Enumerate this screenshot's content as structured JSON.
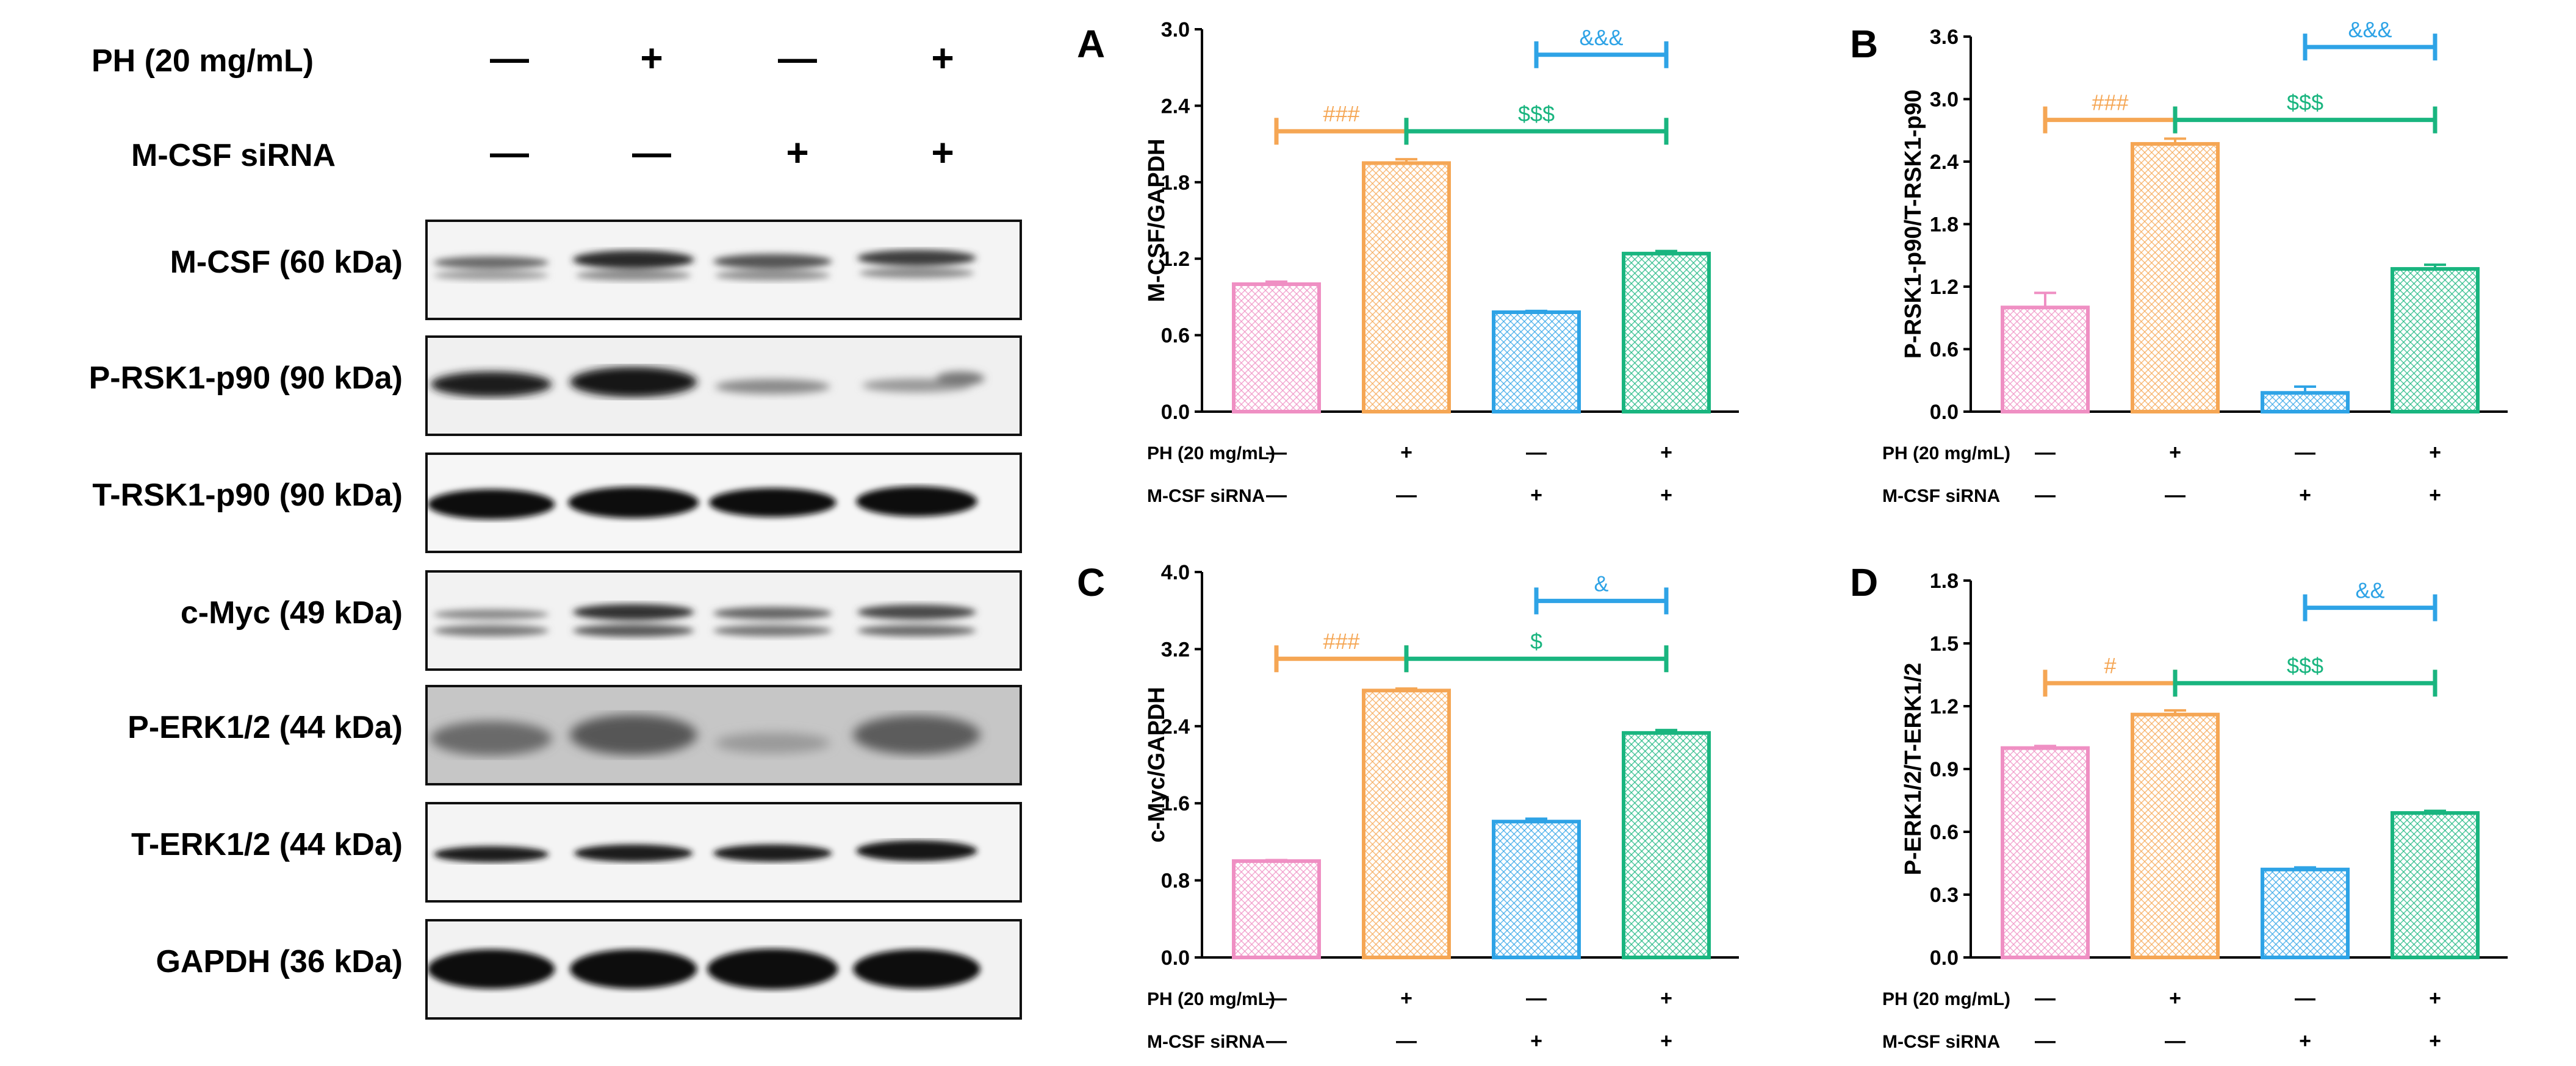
{
  "colors": {
    "pink": "#ef8fc3",
    "orange": "#f5a654",
    "blue": "#2ea3e6",
    "green": "#19b57f",
    "axis": "#000000"
  },
  "blot": {
    "treatment_rows": [
      {
        "label": "PH (20 mg/mL)",
        "signs": [
          "—",
          "+",
          "—",
          "+"
        ]
      },
      {
        "label": "M-CSF siRNA",
        "signs": [
          "—",
          "—",
          "+",
          "+"
        ]
      }
    ],
    "bands": [
      {
        "label": "M-CSF (60 kDa)"
      },
      {
        "label": "P-RSK1-p90 (90 kDa)"
      },
      {
        "label": "T-RSK1-p90 (90 kDa)"
      },
      {
        "label": "c-Myc (49 kDa)"
      },
      {
        "label": "P-ERK1/2 (44 kDa)"
      },
      {
        "label": "T-ERK1/2 (44 kDa)"
      },
      {
        "label": "GAPDH (36 kDa)"
      }
    ]
  },
  "chart_data": [
    {
      "panel": "A",
      "type": "bar",
      "ylabel": "M-CSF/GAPDH",
      "ylim": [
        0,
        3.0
      ],
      "yticks": [
        "0.0",
        "0.6",
        "1.2",
        "1.8",
        "2.4",
        "3.0"
      ],
      "values": [
        1.0,
        1.95,
        0.78,
        1.24
      ],
      "errors": [
        0.02,
        0.03,
        0.01,
        0.02
      ],
      "treatments": [
        {
          "label": "PH (20 mg/mL)",
          "signs": [
            "—",
            "+",
            "—",
            "+"
          ]
        },
        {
          "label": "M-CSF siRNA",
          "signs": [
            "—",
            "—",
            "+",
            "+"
          ]
        }
      ],
      "annotations": {
        "orange": "###",
        "green": "$$$",
        "blue": "&&&"
      },
      "annotation_levels": {
        "orange": 2.2,
        "green": 2.2,
        "blue": 2.8
      }
    },
    {
      "panel": "B",
      "type": "bar",
      "ylabel": "P-RSK1-p90/T-RSK1-p90",
      "ylim": [
        0,
        3.6
      ],
      "yticks": [
        "0.0",
        "0.6",
        "1.2",
        "1.8",
        "2.4",
        "3.0",
        "3.6"
      ],
      "values": [
        1.0,
        2.57,
        0.18,
        1.37
      ],
      "errors": [
        0.14,
        0.05,
        0.06,
        0.04
      ],
      "treatments": [
        {
          "label": "PH (20 mg/mL)",
          "signs": [
            "—",
            "+",
            "—",
            "+"
          ]
        },
        {
          "label": "M-CSF siRNA",
          "signs": [
            "—",
            "—",
            "+",
            "+"
          ]
        }
      ],
      "annotations": {
        "orange": "###",
        "green": "$$$",
        "blue": "&&&"
      },
      "annotation_levels": {
        "orange": 2.8,
        "green": 2.8,
        "blue": 3.5
      }
    },
    {
      "panel": "C",
      "type": "bar",
      "ylabel": "c-Myc/GAPDH",
      "ylim": [
        0,
        4.0
      ],
      "yticks": [
        "0.0",
        "0.8",
        "1.6",
        "2.4",
        "3.2",
        "4.0"
      ],
      "values": [
        1.0,
        2.77,
        1.41,
        2.33
      ],
      "errors": [
        0.01,
        0.02,
        0.03,
        0.03
      ],
      "treatments": [
        {
          "label": "PH (20 mg/mL)",
          "signs": [
            "—",
            "+",
            "—",
            "+"
          ]
        },
        {
          "label": "M-CSF siRNA",
          "signs": [
            "—",
            "—",
            "+",
            "+"
          ]
        }
      ],
      "annotations": {
        "orange": "###",
        "green": "$",
        "blue": "&"
      },
      "annotation_levels": {
        "orange": 3.1,
        "green": 3.1,
        "blue": 3.7
      }
    },
    {
      "panel": "D",
      "type": "bar",
      "ylabel": "P-ERK1/2/T-ERK1/2",
      "ylim": [
        0,
        1.8
      ],
      "yticks": [
        "0.0",
        "0.3",
        "0.6",
        "0.9",
        "1.2",
        "1.5",
        "1.8"
      ],
      "values": [
        1.0,
        1.16,
        0.42,
        0.69
      ],
      "errors": [
        0.01,
        0.02,
        0.01,
        0.01
      ],
      "treatments": [
        {
          "label": "PH (20 mg/mL)",
          "signs": [
            "—",
            "+",
            "—",
            "+"
          ]
        },
        {
          "label": "M-CSF siRNA",
          "signs": [
            "—",
            "—",
            "+",
            "+"
          ]
        }
      ],
      "annotations": {
        "orange": "#",
        "green": "$$$",
        "blue": "&&"
      },
      "annotation_levels": {
        "orange": 1.31,
        "green": 1.31,
        "blue": 1.67
      }
    }
  ]
}
